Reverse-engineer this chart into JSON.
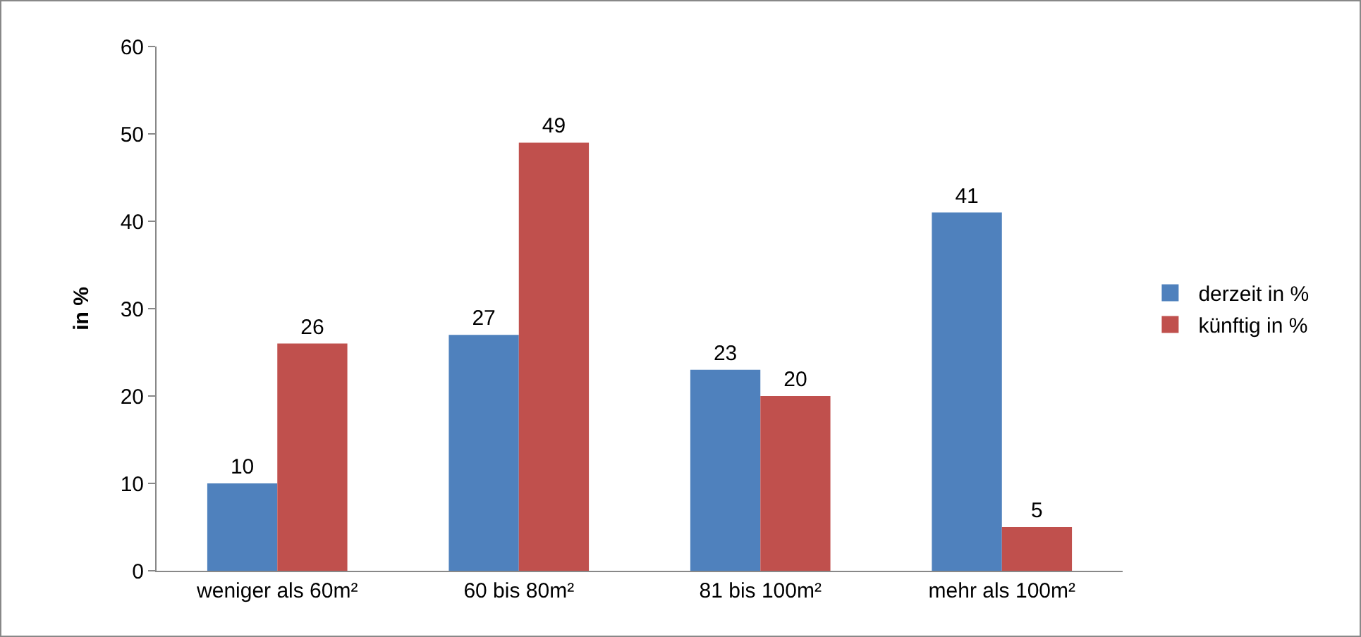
{
  "chart_data": {
    "type": "bar",
    "ylabel": "in %",
    "categories": [
      "weniger als 60m²",
      "60 bis 80m²",
      "81 bis 100m²",
      "mehr als 100m²"
    ],
    "series": [
      {
        "name": "derzeit in %",
        "color": "#4f81bd",
        "values": [
          10,
          27,
          23,
          41
        ]
      },
      {
        "name": "künftig in %",
        "color": "#c0504d",
        "values": [
          26,
          49,
          20,
          5
        ]
      }
    ],
    "ylim": [
      0,
      60
    ],
    "yticks": [
      0,
      10,
      20,
      30,
      40,
      50,
      60
    ],
    "grid": false,
    "legend": "right",
    "data_labels": true
  }
}
